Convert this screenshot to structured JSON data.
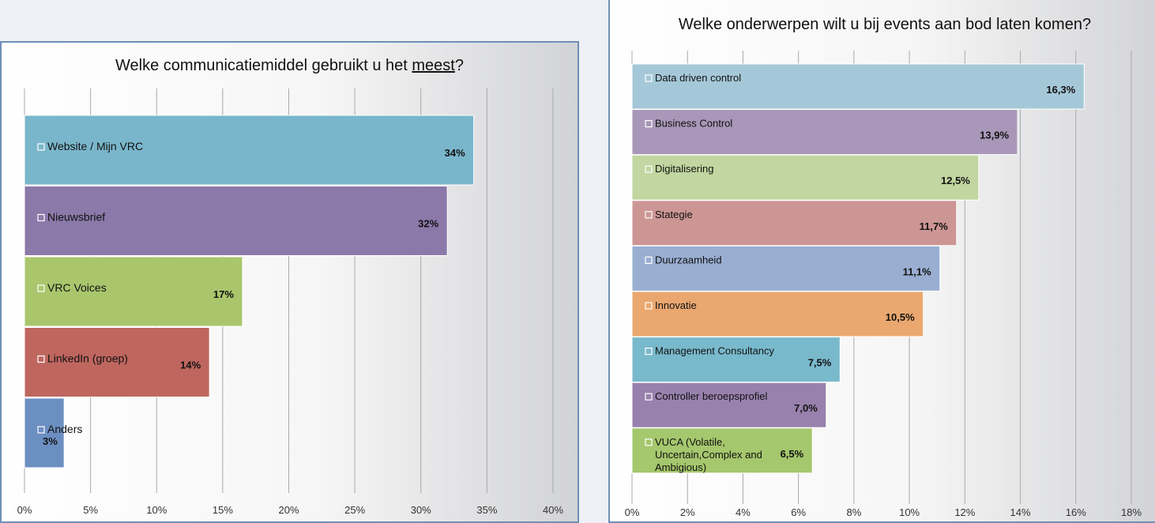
{
  "chart_data": [
    {
      "type": "bar",
      "orientation": "horizontal",
      "title": "Welke communicatiemiddel gebruikt u het meest?",
      "title_parts": {
        "before": "Welke communicatiemiddel gebruikt u het ",
        "underlined": "meest",
        "after": "?"
      },
      "categories": [
        "Website / Mijn VRC",
        "Nieuwsbrief",
        "VRC Voices",
        "LinkedIn (groep)",
        "Anders"
      ],
      "values": [
        34,
        32,
        16.5,
        14,
        3
      ],
      "value_labels": [
        "34%",
        "32%",
        "17%",
        "14%",
        "3%"
      ],
      "colors": [
        "#7ab6cb",
        "#8b79a9",
        "#a9c66d",
        "#bf665f",
        "#6c8fc2"
      ],
      "x_ticks": [
        "0%",
        "5%",
        "10%",
        "15%",
        "20%",
        "25%",
        "30%",
        "35%",
        "40%"
      ],
      "xlim": [
        0,
        40
      ],
      "grid": true,
      "legend": "inline"
    },
    {
      "type": "bar",
      "orientation": "horizontal",
      "title": "Welke onderwerpen wilt u bij events aan bod laten komen?",
      "categories": [
        "Data driven control",
        "Business Control",
        "Digitalisering",
        "Stategie",
        "Duurzaamheid",
        "Innovatie",
        "Management Consultancy",
        "Controller beroepsprofiel",
        "VUCA (Volatile, Uncertain,Complex and Ambigious)"
      ],
      "category_lines": [
        [
          "Data driven control"
        ],
        [
          "Business Control"
        ],
        [
          "Digitalisering"
        ],
        [
          "Stategie"
        ],
        [
          "Duurzaamheid"
        ],
        [
          "Innovatie"
        ],
        [
          "Management Consultancy"
        ],
        [
          "Controller beroepsprofiel"
        ],
        [
          "VUCA (Volatile,",
          "Uncertain,Complex and",
          "Ambigious)"
        ]
      ],
      "values": [
        16.3,
        13.9,
        12.5,
        11.7,
        11.1,
        10.5,
        7.5,
        7.0,
        6.5
      ],
      "value_labels": [
        "16,3%",
        "13,9%",
        "12,5%",
        "11,7%",
        "11,1%",
        "10,5%",
        "7,5%",
        "7,0%",
        "6,5%"
      ],
      "colors": [
        "#a5c8d8",
        "#a897b8",
        "#c1d6a0",
        "#cc9694",
        "#99aed1",
        "#eaa76f",
        "#79b9cc",
        "#9881ad",
        "#a5c76d"
      ],
      "x_ticks": [
        "0%",
        "2%",
        "4%",
        "6%",
        "8%",
        "10%",
        "12%",
        "14%",
        "16%",
        "18%"
      ],
      "xlim": [
        0,
        18
      ],
      "grid": true,
      "legend": "inline"
    }
  ]
}
